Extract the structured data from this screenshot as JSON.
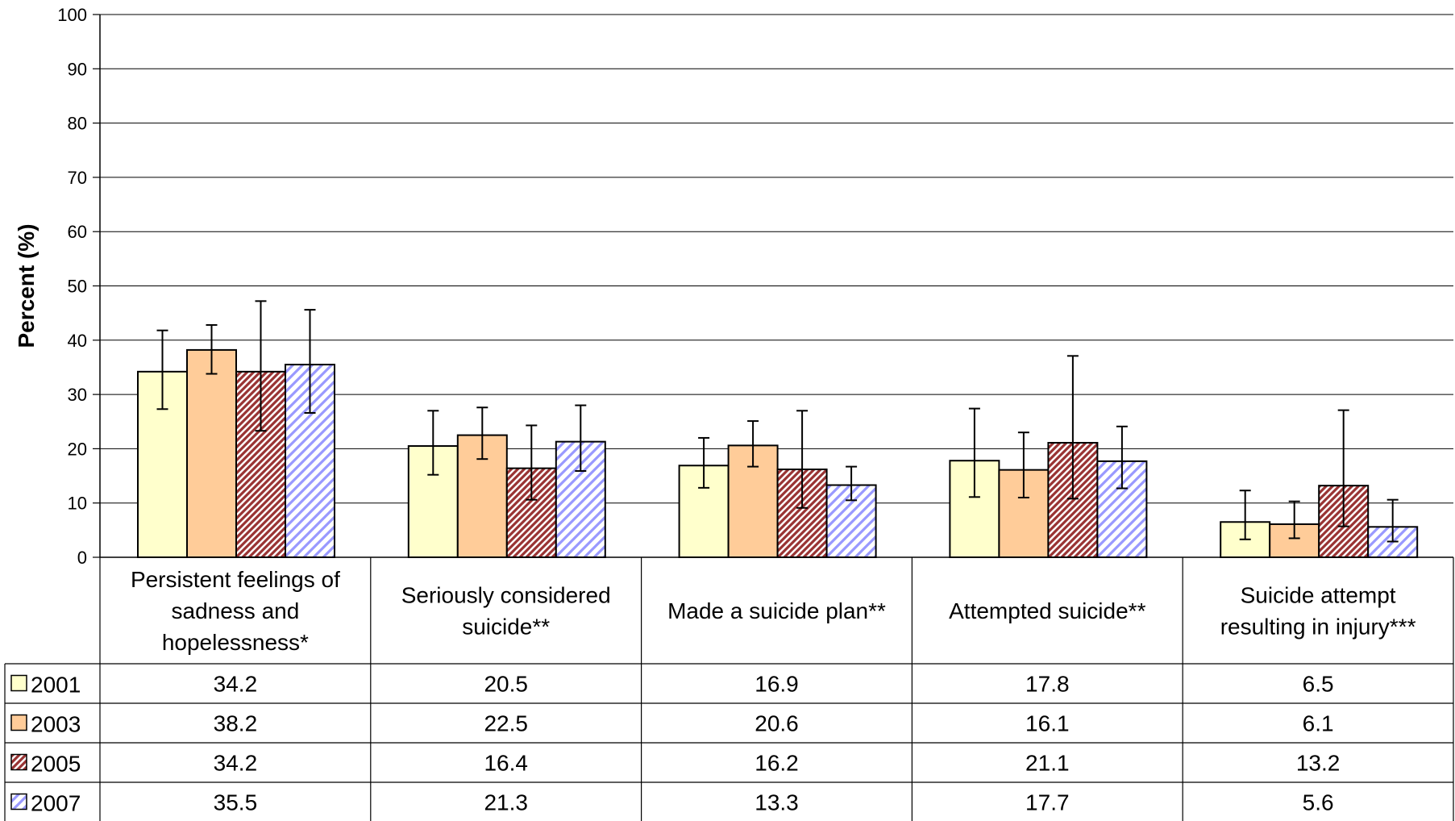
{
  "chart_data": {
    "type": "bar",
    "title": "",
    "xlabel": "",
    "ylabel": "Percent (%)",
    "ylim": [
      0,
      100
    ],
    "yticks": [
      "0",
      "10",
      "20",
      "30",
      "40",
      "50",
      "60",
      "70",
      "80",
      "90",
      "100"
    ],
    "grid": true,
    "legend_placement": "data-table",
    "categories": [
      [
        "Persistent feelings of",
        "sadness and",
        "hopelessness*"
      ],
      [
        "Seriously considered",
        "suicide**"
      ],
      [
        "Made a suicide plan**"
      ],
      [
        "Attempted suicide**"
      ],
      [
        "Suicide attempt",
        "resulting in injury***"
      ]
    ],
    "series": [
      {
        "name": "2001",
        "color": "#FFFFCC",
        "pattern": "solid",
        "values": [
          34.2,
          20.5,
          16.9,
          17.8,
          6.5
        ],
        "labels": [
          "34.2",
          "20.5",
          "16.9",
          "17.8",
          "6.5"
        ],
        "errors": [
          [
            27.3,
            41.8
          ],
          [
            15.2,
            27.0
          ],
          [
            12.8,
            22.0
          ],
          [
            11.1,
            27.4
          ],
          [
            3.3,
            12.3
          ]
        ]
      },
      {
        "name": "2003",
        "color": "#FFCC99",
        "pattern": "solid",
        "values": [
          38.2,
          22.5,
          20.6,
          16.1,
          6.1
        ],
        "labels": [
          "38.2",
          "22.5",
          "20.6",
          "16.1",
          "6.1"
        ],
        "errors": [
          [
            33.8,
            42.8
          ],
          [
            18.1,
            27.6
          ],
          [
            16.7,
            25.1
          ],
          [
            11.0,
            23.0
          ],
          [
            3.5,
            10.3
          ]
        ]
      },
      {
        "name": "2005",
        "color": "#993333",
        "pattern": "diagonal-dark",
        "values": [
          34.2,
          16.4,
          16.2,
          21.1,
          13.2
        ],
        "labels": [
          "34.2",
          "16.4",
          "16.2",
          "21.1",
          "13.2"
        ],
        "errors": [
          [
            23.3,
            47.2
          ],
          [
            10.6,
            24.3
          ],
          [
            9.1,
            27.0
          ],
          [
            10.8,
            37.1
          ],
          [
            5.7,
            27.1
          ]
        ]
      },
      {
        "name": "2007",
        "color": "#9999FF",
        "pattern": "diagonal-light",
        "values": [
          35.5,
          21.3,
          13.3,
          17.7,
          5.6
        ],
        "labels": [
          "35.5",
          "21.3",
          "13.3",
          "17.7",
          "5.6"
        ],
        "errors": [
          [
            26.6,
            45.6
          ],
          [
            15.9,
            28.0
          ],
          [
            10.5,
            16.7
          ],
          [
            12.7,
            24.1
          ],
          [
            2.9,
            10.6
          ]
        ]
      }
    ]
  }
}
